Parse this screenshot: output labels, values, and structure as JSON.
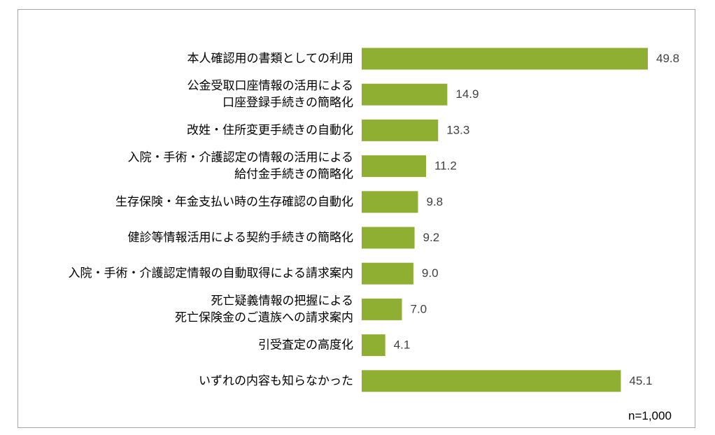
{
  "chart_data": {
    "type": "bar",
    "orientation": "horizontal",
    "categories": [
      [
        "本人確認用の書類としての利用"
      ],
      [
        "公金受取口座情報の活用による",
        "口座登録手続きの簡略化"
      ],
      [
        "改姓・住所変更手続きの自動化"
      ],
      [
        "入院・手術・介護認定の情報の活用による",
        "給付金手続きの簡略化"
      ],
      [
        "生存保険・年金支払い時の生存確認の自動化"
      ],
      [
        "健診等情報活用による契約手続きの簡略化"
      ],
      [
        "入院・手術・介護認定情報の自動取得による請求案内"
      ],
      [
        "死亡疑義情報の把握による",
        "死亡保険金のご遺族への請求案内"
      ],
      [
        "引受査定の高度化"
      ],
      [
        "いずれの内容も知らなかった"
      ]
    ],
    "values": [
      49.8,
      14.9,
      13.3,
      11.2,
      9.8,
      9.2,
      9.0,
      7.0,
      4.1,
      45.1
    ],
    "value_labels": [
      "49.8",
      "14.9",
      "13.3",
      "11.2",
      "9.8",
      "9.2",
      "9.0",
      "7.0",
      "4.1",
      "45.1"
    ],
    "xlim": [
      0,
      60
    ],
    "grid": false,
    "bar_color": "#8faf32",
    "title": "",
    "xlabel": "",
    "ylabel": ""
  },
  "note": "n=1,000"
}
